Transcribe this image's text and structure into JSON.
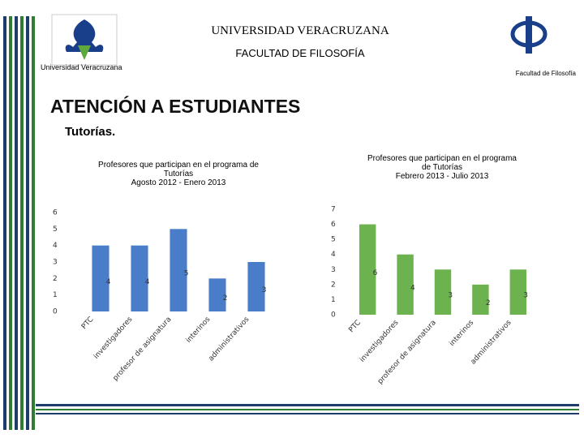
{
  "header": {
    "university": "UNIVERSIDAD VERACRUZANA",
    "faculty": "FACULTAD DE FILOSOFÍA",
    "left_logo_caption": "Universidad Veracruzana",
    "right_logo_caption": "Facultad de Filosofía",
    "title": "ATENCIÓN A ESTUDIANTES",
    "subtitle": "Tutorías."
  },
  "chart_data": [
    {
      "type": "bar",
      "title": "Profesores que participan en el programa de\nTutorías\nAgosto 2012 -  Enero 2013",
      "categories": [
        "PTC",
        "investigadores",
        "profesor de asignatura",
        "interinos",
        "administrativos"
      ],
      "values": [
        4,
        4,
        5,
        2,
        3
      ],
      "color": "#4a7dc9",
      "ylim": [
        0,
        6
      ],
      "yticks": [
        0,
        1,
        2,
        3,
        4,
        5,
        6
      ]
    },
    {
      "type": "bar",
      "title": "Profesores que participan en el programa\nde Tutorías\nFebrero  2013 - Julio 2013",
      "categories": [
        "PTC",
        "investigadores",
        "profesor de asignatura",
        "interinos",
        "administrativos"
      ],
      "values": [
        6,
        4,
        3,
        2,
        3
      ],
      "color": "#6cb34f",
      "ylim": [
        0,
        7
      ],
      "yticks": [
        0,
        1,
        2,
        3,
        4,
        5,
        6,
        7
      ]
    }
  ]
}
